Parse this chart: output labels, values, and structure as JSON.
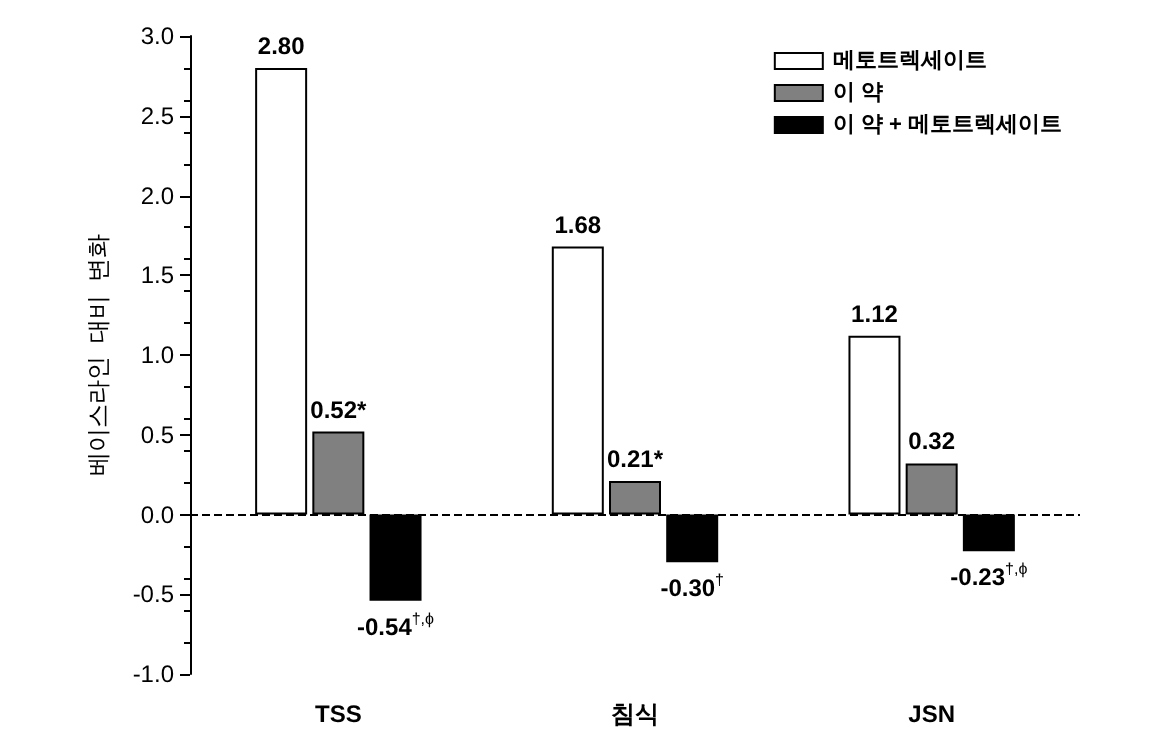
{
  "chart_data": {
    "type": "bar",
    "ylabel": "베이스라인  대비  변화",
    "categories": [
      "TSS",
      "침식",
      "JSN"
    ],
    "series": [
      {
        "name": "메토트렉세이트",
        "color": "#ffffff",
        "values": [
          2.8,
          1.68,
          1.12
        ],
        "value_labels": [
          "2.80",
          "1.68",
          "1.12"
        ]
      },
      {
        "name": "이 약",
        "color": "#808080",
        "values": [
          0.52,
          0.21,
          0.32
        ],
        "value_labels": [
          "0.52*",
          "0.21*",
          "0.32"
        ]
      },
      {
        "name": "이 약 + 메토트렉세이트",
        "color": "#000000",
        "values": [
          -0.54,
          -0.3,
          -0.23
        ],
        "value_labels": [
          "-0.54$^{†,ϕ}$",
          "-0.30$^{†}$",
          "-0.23$^{†,ϕ}$"
        ]
      }
    ],
    "ylim": [
      -1.0,
      3.0
    ],
    "yticks": [
      {
        "value": -1,
        "label": "-1.0"
      },
      {
        "value": -0.5,
        "label": "-0.5"
      },
      {
        "value": 0,
        "label": "0.0"
      },
      {
        "value": 0.5,
        "label": "0.5"
      },
      {
        "value": 1,
        "label": "1.0"
      },
      {
        "value": 1.5,
        "label": "1.5"
      },
      {
        "value": 2,
        "label": "2.0"
      },
      {
        "value": 2.5,
        "label": "2.5"
      },
      {
        "value": 3,
        "label": "3.0"
      }
    ],
    "ref_lines": [
      {
        "axis": "y",
        "value": 0,
        "color": "#000000",
        "line_style": "dashed"
      }
    ],
    "grid": false,
    "legend": "top right"
  }
}
